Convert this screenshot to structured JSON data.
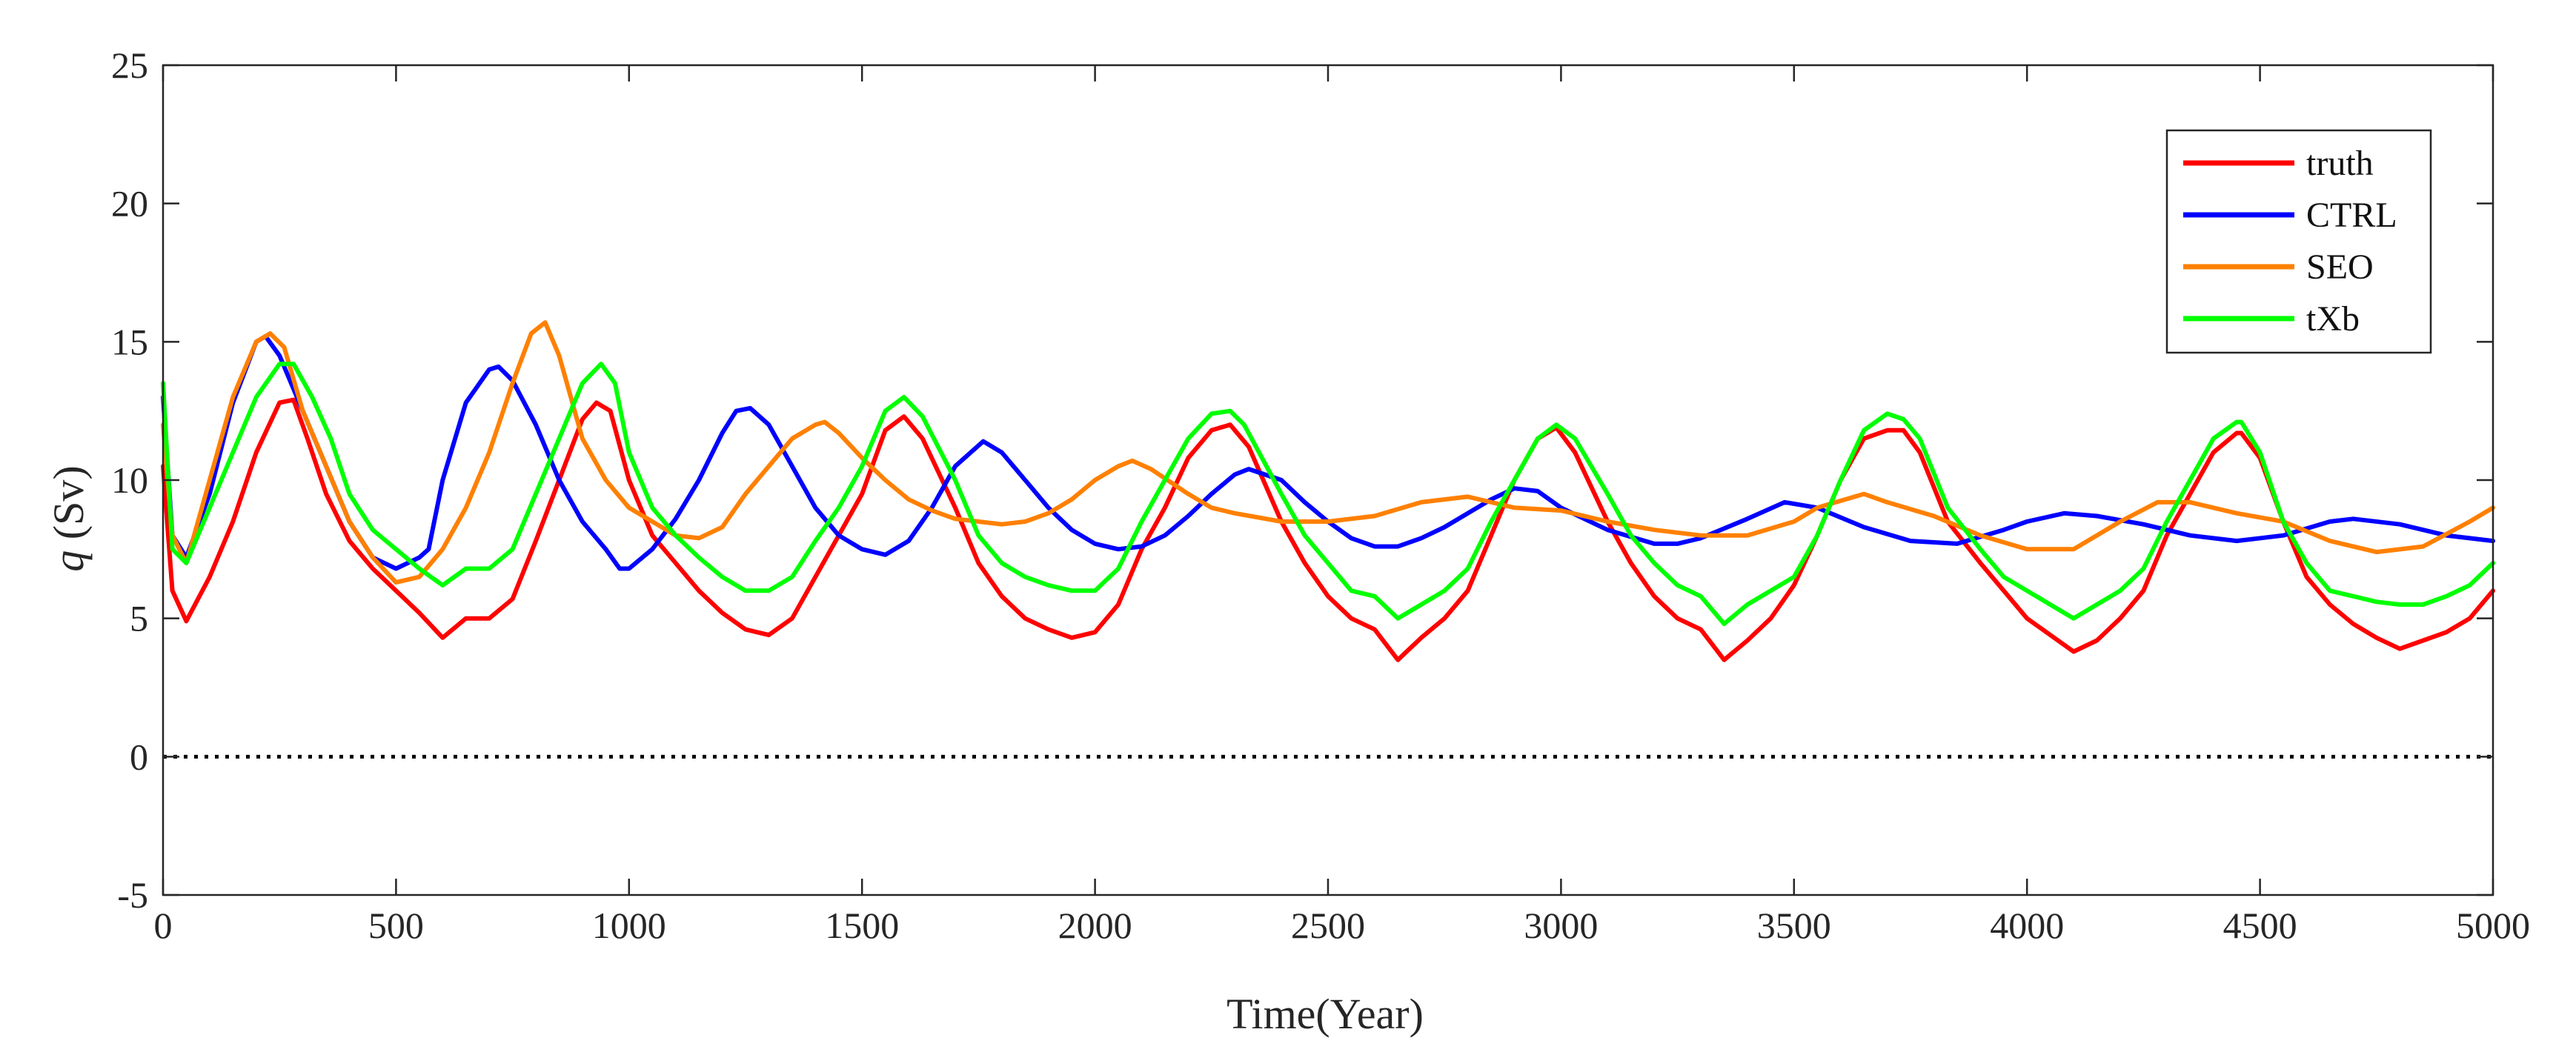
{
  "chart_data": {
    "type": "line",
    "title": "",
    "xlabel": "Time(Year)",
    "ylabel": {
      "var": "q",
      "unit": " (Sv)"
    },
    "xlim": [
      0,
      5000
    ],
    "ylim": [
      -5,
      25
    ],
    "xticks": [
      0,
      500,
      1000,
      1500,
      2000,
      2500,
      3000,
      3500,
      4000,
      4500,
      5000
    ],
    "yticks": [
      -5,
      0,
      5,
      10,
      15,
      20,
      25
    ],
    "grid": false,
    "legend_position": "top-right",
    "reference_line": {
      "y": 0,
      "style": "dotted",
      "color": "#000000"
    },
    "series": [
      {
        "name": "truth",
        "color": "#ff0000",
        "x": [
          0,
          20,
          50,
          100,
          150,
          200,
          250,
          280,
          310,
          350,
          400,
          450,
          500,
          550,
          600,
          650,
          700,
          750,
          800,
          850,
          900,
          930,
          960,
          1000,
          1050,
          1100,
          1150,
          1200,
          1250,
          1300,
          1350,
          1400,
          1450,
          1500,
          1550,
          1590,
          1630,
          1700,
          1750,
          1800,
          1850,
          1900,
          1950,
          2000,
          2050,
          2100,
          2150,
          2200,
          2250,
          2290,
          2330,
          2400,
          2450,
          2500,
          2550,
          2600,
          2650,
          2700,
          2750,
          2800,
          2850,
          2900,
          2950,
          2990,
          3030,
          3100,
          3150,
          3200,
          3250,
          3300,
          3350,
          3400,
          3450,
          3500,
          3550,
          3600,
          3650,
          3700,
          3735,
          3770,
          3830,
          3900,
          3950,
          4000,
          4050,
          4100,
          4150,
          4200,
          4250,
          4300,
          4350,
          4400,
          4450,
          4460,
          4500,
          4550,
          4600,
          4650,
          4700,
          4750,
          4800,
          4850,
          4900,
          4950,
          5000
        ],
        "values": [
          10.5,
          6.0,
          4.9,
          6.5,
          8.5,
          11.0,
          12.8,
          12.9,
          11.5,
          9.5,
          7.8,
          6.8,
          6.0,
          5.2,
          4.3,
          5.0,
          5.0,
          5.7,
          7.8,
          10.0,
          12.2,
          12.8,
          12.5,
          10.0,
          8.0,
          7.0,
          6.0,
          5.2,
          4.6,
          4.4,
          5.0,
          6.5,
          8.0,
          9.5,
          11.8,
          12.3,
          11.5,
          9.0,
          7.0,
          5.8,
          5.0,
          4.6,
          4.3,
          4.5,
          5.5,
          7.5,
          9.0,
          10.8,
          11.8,
          12.0,
          11.2,
          8.5,
          7.0,
          5.8,
          5.0,
          4.6,
          3.5,
          4.3,
          5.0,
          6.0,
          8.0,
          10.0,
          11.5,
          11.9,
          11.0,
          8.5,
          7.0,
          5.8,
          5.0,
          4.6,
          3.5,
          4.2,
          5.0,
          6.2,
          8.0,
          10.0,
          11.5,
          11.8,
          11.8,
          11.0,
          8.5,
          7.0,
          6.0,
          5.0,
          4.4,
          3.8,
          4.2,
          5.0,
          6.0,
          8.0,
          9.5,
          11.0,
          11.7,
          11.7,
          10.8,
          8.5,
          6.5,
          5.5,
          4.8,
          4.3,
          3.9,
          4.2,
          4.5,
          5.0,
          6.0
        ]
      },
      {
        "name": "CTRL",
        "color": "#0000ff",
        "x": [
          0,
          20,
          50,
          100,
          150,
          200,
          220,
          250,
          300,
          350,
          400,
          450,
          500,
          550,
          570,
          600,
          650,
          700,
          720,
          750,
          800,
          850,
          900,
          950,
          980,
          1000,
          1050,
          1100,
          1150,
          1200,
          1230,
          1260,
          1300,
          1350,
          1400,
          1450,
          1500,
          1550,
          1600,
          1650,
          1700,
          1760,
          1800,
          1850,
          1900,
          1950,
          2000,
          2050,
          2100,
          2150,
          2200,
          2250,
          2300,
          2330,
          2400,
          2450,
          2500,
          2550,
          2600,
          2650,
          2700,
          2750,
          2800,
          2850,
          2900,
          2950,
          3000,
          3100,
          3200,
          3250,
          3300,
          3400,
          3480,
          3550,
          3650,
          3750,
          3850,
          3950,
          4000,
          4080,
          4150,
          4250,
          4350,
          4450,
          4550,
          4650,
          4700,
          4800,
          4900,
          5000
        ],
        "values": [
          13.0,
          8.0,
          7.2,
          9.5,
          12.8,
          15.0,
          15.2,
          14.5,
          12.5,
          10.5,
          8.5,
          7.2,
          6.8,
          7.2,
          7.5,
          10.0,
          12.8,
          14.0,
          14.1,
          13.6,
          12.0,
          10.0,
          8.5,
          7.5,
          6.8,
          6.8,
          7.5,
          8.6,
          10.0,
          11.7,
          12.5,
          12.6,
          12.0,
          10.5,
          9.0,
          8.0,
          7.5,
          7.3,
          7.8,
          9.0,
          10.5,
          11.4,
          11.0,
          10.0,
          9.0,
          8.2,
          7.7,
          7.5,
          7.6,
          8.0,
          8.7,
          9.5,
          10.2,
          10.4,
          10.0,
          9.2,
          8.5,
          7.9,
          7.6,
          7.6,
          7.9,
          8.3,
          8.8,
          9.3,
          9.7,
          9.6,
          9.0,
          8.2,
          7.7,
          7.7,
          7.9,
          8.6,
          9.2,
          9.0,
          8.3,
          7.8,
          7.7,
          8.2,
          8.5,
          8.8,
          8.7,
          8.4,
          8.0,
          7.8,
          8.0,
          8.5,
          8.6,
          8.4,
          8.0,
          7.8
        ]
      },
      {
        "name": "SEO",
        "color": "#ff8000",
        "x": [
          0,
          20,
          50,
          100,
          150,
          200,
          230,
          260,
          300,
          350,
          400,
          450,
          500,
          550,
          600,
          650,
          700,
          750,
          790,
          820,
          850,
          900,
          950,
          1000,
          1050,
          1100,
          1150,
          1200,
          1250,
          1300,
          1350,
          1400,
          1420,
          1450,
          1500,
          1550,
          1600,
          1650,
          1700,
          1750,
          1800,
          1850,
          1900,
          1950,
          2000,
          2050,
          2080,
          2120,
          2200,
          2250,
          2300,
          2400,
          2500,
          2600,
          2700,
          2800,
          2900,
          3000,
          3100,
          3200,
          3300,
          3400,
          3500,
          3550,
          3650,
          3700,
          3800,
          3900,
          4000,
          4100,
          4200,
          4280,
          4350,
          4450,
          4550,
          4650,
          4750,
          4850,
          4950,
          5000
        ],
        "values": [
          12.0,
          8.0,
          7.0,
          10.0,
          13.0,
          15.0,
          15.3,
          14.8,
          12.5,
          10.5,
          8.5,
          7.2,
          6.3,
          6.5,
          7.5,
          9.0,
          11.0,
          13.5,
          15.3,
          15.7,
          14.5,
          11.5,
          10.0,
          9.0,
          8.5,
          8.0,
          7.9,
          8.3,
          9.5,
          10.5,
          11.5,
          12.0,
          12.1,
          11.7,
          10.8,
          10.0,
          9.3,
          8.9,
          8.6,
          8.5,
          8.4,
          8.5,
          8.8,
          9.3,
          10.0,
          10.5,
          10.7,
          10.4,
          9.5,
          9.0,
          8.8,
          8.5,
          8.5,
          8.7,
          9.2,
          9.4,
          9.0,
          8.9,
          8.5,
          8.2,
          8.0,
          8.0,
          8.5,
          9.0,
          9.5,
          9.2,
          8.7,
          8.0,
          7.5,
          7.5,
          8.5,
          9.2,
          9.2,
          8.8,
          8.5,
          7.8,
          7.4,
          7.6,
          8.5,
          9.0
        ]
      },
      {
        "name": "tXb",
        "color": "#00ff00",
        "x": [
          0,
          20,
          50,
          100,
          150,
          200,
          250,
          280,
          320,
          360,
          400,
          450,
          500,
          550,
          600,
          650,
          700,
          750,
          800,
          850,
          900,
          940,
          970,
          1000,
          1050,
          1100,
          1150,
          1200,
          1250,
          1300,
          1350,
          1400,
          1450,
          1500,
          1550,
          1590,
          1630,
          1700,
          1750,
          1800,
          1850,
          1900,
          1950,
          2000,
          2050,
          2100,
          2150,
          2200,
          2250,
          2290,
          2320,
          2400,
          2450,
          2500,
          2550,
          2600,
          2650,
          2700,
          2750,
          2800,
          2850,
          2900,
          2950,
          2990,
          3030,
          3100,
          3150,
          3200,
          3250,
          3300,
          3350,
          3400,
          3450,
          3500,
          3550,
          3600,
          3650,
          3700,
          3735,
          3770,
          3830,
          3900,
          3950,
          4000,
          4050,
          4100,
          4150,
          4200,
          4250,
          4300,
          4350,
          4400,
          4450,
          4460,
          4500,
          4550,
          4600,
          4650,
          4700,
          4750,
          4800,
          4850,
          4900,
          4950,
          5000
        ],
        "values": [
          13.5,
          7.5,
          7.0,
          9.0,
          11.0,
          13.0,
          14.2,
          14.2,
          13.0,
          11.5,
          9.5,
          8.2,
          7.5,
          6.8,
          6.2,
          6.8,
          6.8,
          7.5,
          9.5,
          11.5,
          13.5,
          14.2,
          13.5,
          11.0,
          9.0,
          8.0,
          7.2,
          6.5,
          6.0,
          6.0,
          6.5,
          7.8,
          9.0,
          10.5,
          12.5,
          13.0,
          12.3,
          10.0,
          8.0,
          7.0,
          6.5,
          6.2,
          6.0,
          6.0,
          6.8,
          8.5,
          10.0,
          11.5,
          12.4,
          12.5,
          12.0,
          9.5,
          8.0,
          7.0,
          6.0,
          5.8,
          5.0,
          5.5,
          6.0,
          6.8,
          8.5,
          10.0,
          11.5,
          12.0,
          11.5,
          9.5,
          8.0,
          7.0,
          6.2,
          5.8,
          4.8,
          5.5,
          6.0,
          6.5,
          8.0,
          10.0,
          11.8,
          12.4,
          12.2,
          11.5,
          9.0,
          7.5,
          6.5,
          6.0,
          5.5,
          5.0,
          5.5,
          6.0,
          6.8,
          8.5,
          10.0,
          11.5,
          12.1,
          12.1,
          11.0,
          8.5,
          7.0,
          6.0,
          5.8,
          5.6,
          5.5,
          5.5,
          5.8,
          6.2,
          7.0
        ]
      }
    ]
  }
}
